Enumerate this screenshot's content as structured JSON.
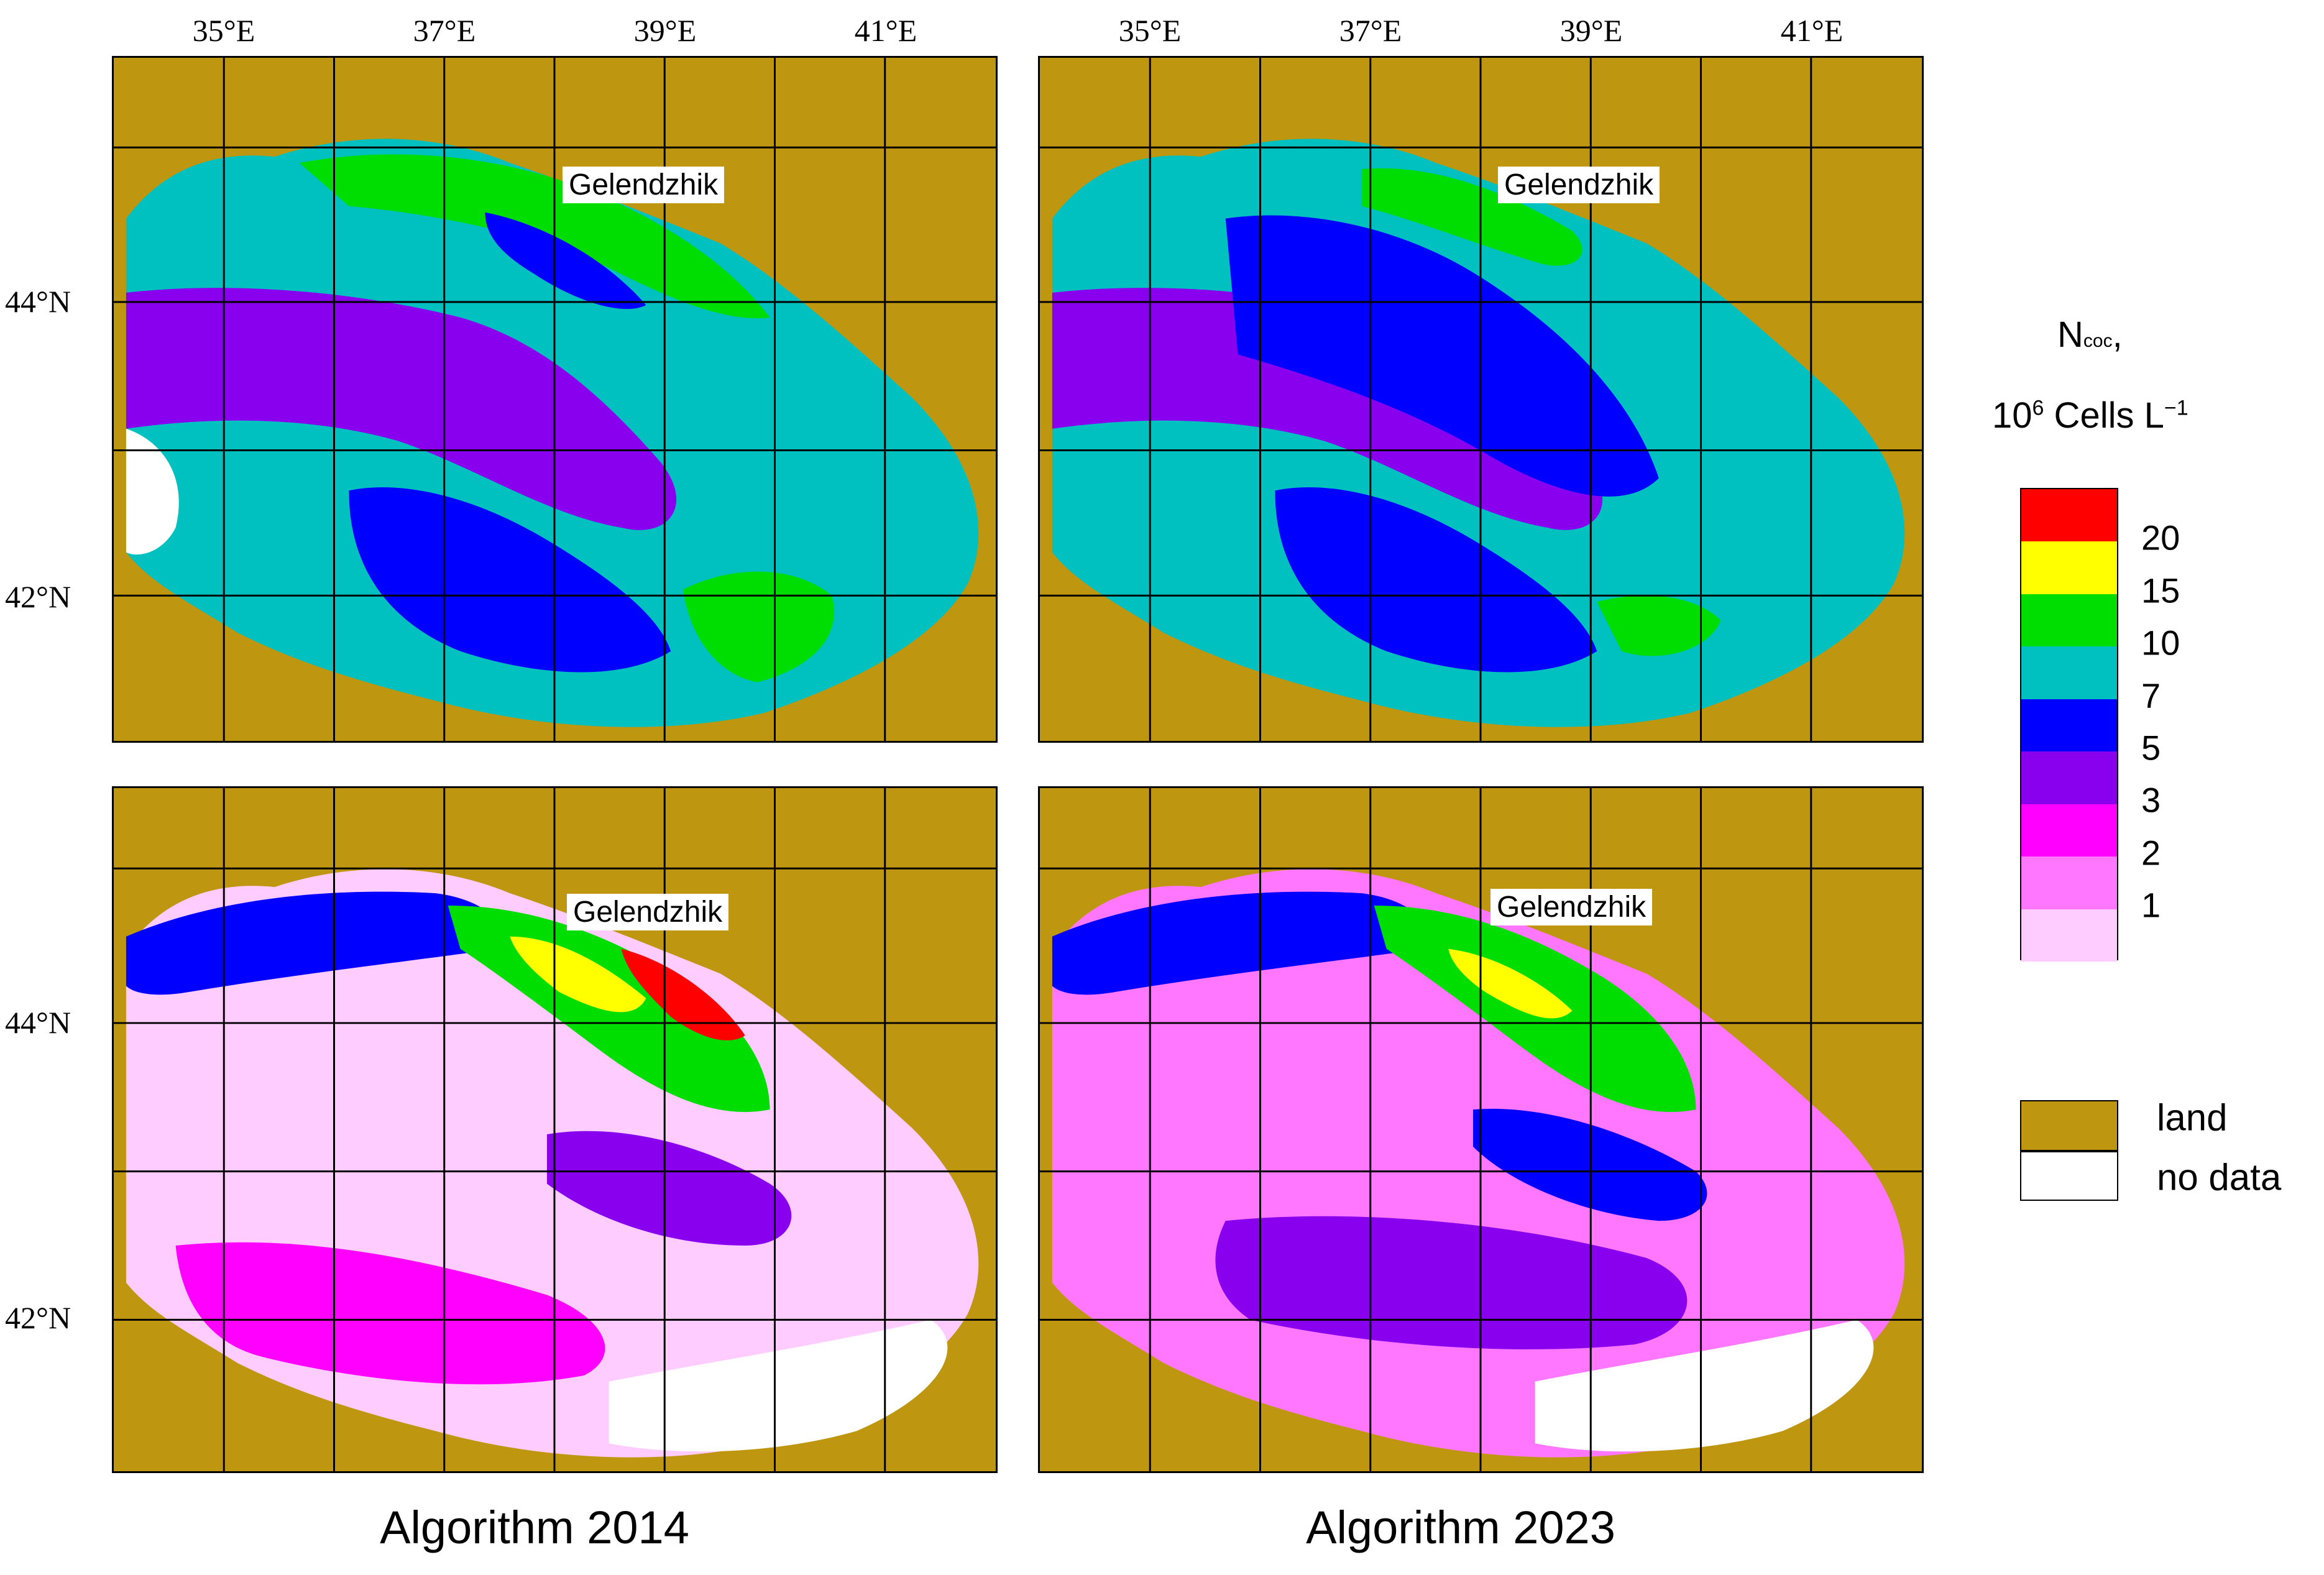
{
  "lon_ticks": [
    "35°E",
    "37°E",
    "39°E",
    "41°E"
  ],
  "lat_ticks": [
    "44°N",
    "42°N"
  ],
  "city": "Gelendzhik",
  "captions": [
    "Algorithm 2014",
    "Algorithm 2023"
  ],
  "legend": {
    "title_main": "N",
    "title_sub": "coc",
    "title_comma": ",",
    "unit_base": "10",
    "unit_exp": "6",
    "unit_rest": " Cells L",
    "unit_exp2": "−1",
    "classes": [
      {
        "label": "20",
        "color": "#ff0000"
      },
      {
        "label": "15",
        "color": "#ffff00"
      },
      {
        "label": "10",
        "color": "#00dd00"
      },
      {
        "label": "7",
        "color": "#00c0c0"
      },
      {
        "label": "5",
        "color": "#0000ff"
      },
      {
        "label": "3",
        "color": "#8800ee"
      },
      {
        "label": "2",
        "color": "#ff00ff"
      },
      {
        "label": "1",
        "color": "#ff77ff"
      },
      {
        "label": "",
        "color": "#ffccff"
      }
    ],
    "land_label": "land",
    "land_color": "#bf960f",
    "nodata_label": "no data",
    "nodata_color": "#ffffff"
  }
}
